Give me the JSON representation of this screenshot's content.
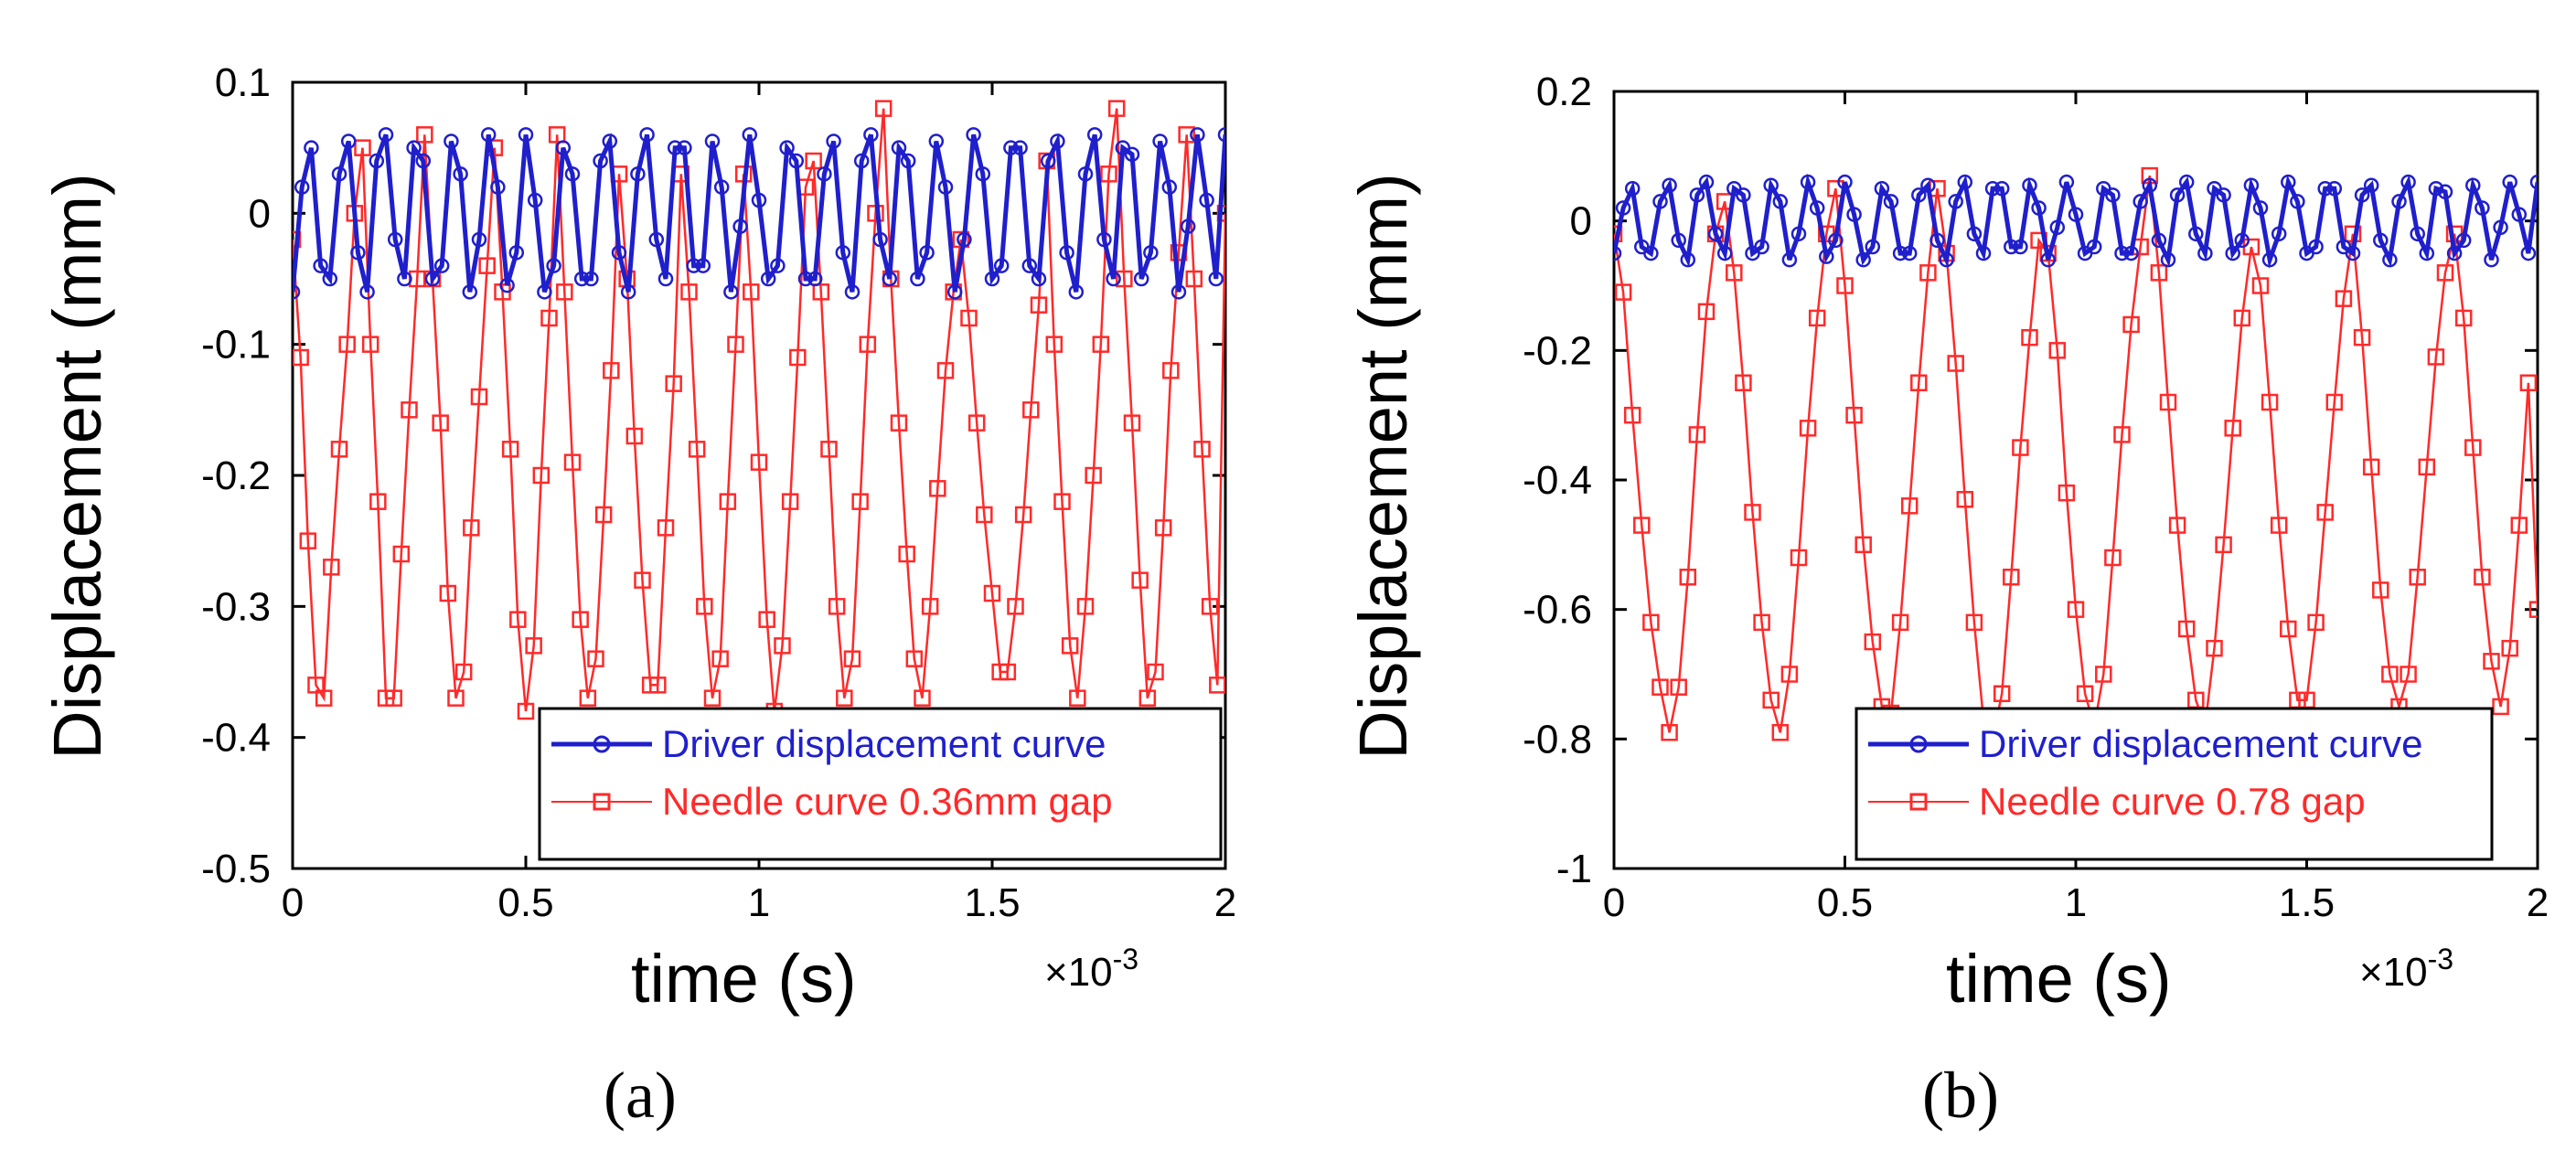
{
  "colors": {
    "driver": "#1f1fcc",
    "needle": "#ff2a2a",
    "axis": "#000000",
    "background": "#ffffff"
  },
  "chart_data": [
    {
      "type": "line",
      "panel_label": "(a)",
      "xlabel": "time (s)",
      "ylabel": "Displacement (mm)",
      "x_exponent": "×10",
      "x_exponent_power": "-3",
      "xlim": [
        0,
        2
      ],
      "ylim": [
        -0.5,
        0.1
      ],
      "xticks": [
        0,
        0.5,
        1,
        1.5,
        2
      ],
      "xtick_labels": [
        "0",
        "0.5",
        "1",
        "1.5",
        "2"
      ],
      "yticks": [
        0.1,
        0,
        -0.1,
        -0.2,
        -0.3,
        -0.4,
        -0.5
      ],
      "ytick_labels": [
        "0.1",
        "0",
        "-0.1",
        "-0.2",
        "-0.3",
        "-0.4",
        "-0.5"
      ],
      "legend_position": "bottom-right",
      "series": [
        {
          "name": "Driver displacement curve",
          "marker": "circle",
          "x": [
            0,
            0.02,
            0.04,
            0.06,
            0.08,
            0.1,
            0.12,
            0.14,
            0.16,
            0.18,
            0.2,
            0.22,
            0.24,
            0.26,
            0.28,
            0.3,
            0.32,
            0.34,
            0.36,
            0.38,
            0.4,
            0.42,
            0.44,
            0.46,
            0.48,
            0.5,
            0.52,
            0.54,
            0.56,
            0.58,
            0.6,
            0.62,
            0.64,
            0.66,
            0.68,
            0.7,
            0.72,
            0.74,
            0.76,
            0.78,
            0.8,
            0.82,
            0.84,
            0.86,
            0.88,
            0.9,
            0.92,
            0.94,
            0.96,
            0.98,
            1,
            1.02,
            1.04,
            1.06,
            1.08,
            1.1,
            1.12,
            1.14,
            1.16,
            1.18,
            1.2,
            1.22,
            1.24,
            1.26,
            1.28,
            1.3,
            1.32,
            1.34,
            1.36,
            1.38,
            1.4,
            1.42,
            1.44,
            1.46,
            1.48,
            1.5,
            1.52,
            1.54,
            1.56,
            1.58,
            1.6,
            1.62,
            1.64,
            1.66,
            1.68,
            1.7,
            1.72,
            1.74,
            1.76,
            1.78,
            1.8,
            1.82,
            1.84,
            1.86,
            1.88,
            1.9,
            1.92,
            1.94,
            1.96,
            1.98,
            2
          ],
          "y": [
            -0.06,
            0.02,
            0.05,
            -0.04,
            -0.05,
            0.03,
            0.055,
            -0.03,
            -0.06,
            0.04,
            0.06,
            -0.02,
            -0.05,
            0.05,
            0.04,
            -0.05,
            -0.04,
            0.055,
            0.03,
            -0.06,
            -0.02,
            0.06,
            0.02,
            -0.055,
            -0.03,
            0.06,
            0.01,
            -0.06,
            -0.04,
            0.05,
            0.03,
            -0.05,
            -0.05,
            0.04,
            0.055,
            -0.03,
            -0.06,
            0.03,
            0.06,
            -0.02,
            -0.05,
            0.05,
            0.05,
            -0.04,
            -0.04,
            0.055,
            0.02,
            -0.06,
            -0.01,
            0.06,
            0.01,
            -0.05,
            -0.04,
            0.05,
            0.04,
            -0.05,
            -0.05,
            0.03,
            0.055,
            -0.03,
            -0.06,
            0.04,
            0.06,
            -0.02,
            -0.05,
            0.05,
            0.04,
            -0.05,
            -0.03,
            0.055,
            0.02,
            -0.06,
            -0.02,
            0.06,
            0.03,
            -0.05,
            -0.04,
            0.05,
            0.05,
            -0.04,
            -0.05,
            0.04,
            0.055,
            -0.03,
            -0.06,
            0.03,
            0.06,
            -0.02,
            -0.05,
            0.05,
            0.045,
            -0.05,
            -0.03,
            0.055,
            0.02,
            -0.06,
            -0.01,
            0.06,
            0.01,
            -0.05,
            0.06
          ]
        },
        {
          "name": "Needle curve 0.36mm gap",
          "marker": "square",
          "x": [
            0,
            0.017,
            0.033,
            0.05,
            0.067,
            0.083,
            0.1,
            0.117,
            0.133,
            0.15,
            0.167,
            0.183,
            0.2,
            0.217,
            0.233,
            0.25,
            0.267,
            0.283,
            0.3,
            0.317,
            0.333,
            0.35,
            0.367,
            0.383,
            0.4,
            0.417,
            0.433,
            0.45,
            0.467,
            0.483,
            0.5,
            0.517,
            0.533,
            0.55,
            0.567,
            0.583,
            0.6,
            0.617,
            0.633,
            0.65,
            0.667,
            0.683,
            0.7,
            0.717,
            0.733,
            0.75,
            0.767,
            0.783,
            0.8,
            0.817,
            0.833,
            0.85,
            0.867,
            0.883,
            0.9,
            0.917,
            0.933,
            0.95,
            0.967,
            0.983,
            1,
            1.017,
            1.033,
            1.05,
            1.067,
            1.083,
            1.1,
            1.117,
            1.133,
            1.15,
            1.167,
            1.183,
            1.2,
            1.217,
            1.233,
            1.25,
            1.267,
            1.283,
            1.3,
            1.317,
            1.333,
            1.35,
            1.367,
            1.383,
            1.4,
            1.417,
            1.433,
            1.45,
            1.467,
            1.483,
            1.5,
            1.517,
            1.533,
            1.55,
            1.567,
            1.583,
            1.6,
            1.617,
            1.633,
            1.65,
            1.667,
            1.683,
            1.7,
            1.717,
            1.733,
            1.75,
            1.767,
            1.783,
            1.8,
            1.817,
            1.833,
            1.85,
            1.867,
            1.883,
            1.9,
            1.917,
            1.933,
            1.95,
            1.967,
            1.983,
            2
          ],
          "y": [
            -0.02,
            -0.11,
            -0.25,
            -0.36,
            -0.37,
            -0.27,
            -0.18,
            -0.1,
            0.0,
            0.05,
            -0.1,
            -0.22,
            -0.37,
            -0.37,
            -0.26,
            -0.15,
            -0.05,
            0.06,
            -0.05,
            -0.16,
            -0.29,
            -0.37,
            -0.35,
            -0.24,
            -0.14,
            -0.04,
            0.05,
            -0.06,
            -0.18,
            -0.31,
            -0.38,
            -0.33,
            -0.2,
            -0.08,
            0.06,
            -0.06,
            -0.19,
            -0.31,
            -0.37,
            -0.34,
            -0.23,
            -0.12,
            0.03,
            -0.05,
            -0.17,
            -0.28,
            -0.36,
            -0.36,
            -0.24,
            -0.13,
            0.03,
            -0.06,
            -0.18,
            -0.3,
            -0.37,
            -0.34,
            -0.22,
            -0.1,
            0.03,
            -0.06,
            -0.19,
            -0.31,
            -0.38,
            -0.33,
            -0.22,
            -0.11,
            0.02,
            0.04,
            -0.06,
            -0.18,
            -0.3,
            -0.37,
            -0.34,
            -0.22,
            -0.1,
            0.0,
            0.08,
            -0.05,
            -0.16,
            -0.26,
            -0.34,
            -0.37,
            -0.3,
            -0.21,
            -0.12,
            -0.06,
            -0.02,
            -0.08,
            -0.16,
            -0.23,
            -0.29,
            -0.35,
            -0.35,
            -0.3,
            -0.23,
            -0.15,
            -0.07,
            0.04,
            -0.1,
            -0.22,
            -0.33,
            -0.37,
            -0.3,
            -0.2,
            -0.1,
            0.03,
            0.08,
            -0.05,
            -0.16,
            -0.28,
            -0.37,
            -0.35,
            -0.24,
            -0.12,
            -0.03,
            0.06,
            -0.05,
            -0.18,
            -0.3,
            -0.36,
            0.0
          ]
        }
      ]
    },
    {
      "type": "line",
      "panel_label": "(b)",
      "xlabel": "time (s)",
      "ylabel": "Displacement (mm)",
      "x_exponent": "×10",
      "x_exponent_power": "-3",
      "xlim": [
        0,
        2
      ],
      "ylim": [
        -1,
        0.2
      ],
      "xticks": [
        0,
        0.5,
        1,
        1.5,
        2
      ],
      "xtick_labels": [
        "0",
        "0.5",
        "1",
        "1.5",
        "2"
      ],
      "yticks": [
        0.2,
        0,
        -0.2,
        -0.4,
        -0.6,
        -0.8,
        -1
      ],
      "ytick_labels": [
        "0.2",
        "0",
        "-0.2",
        "-0.4",
        "-0.6",
        "-0.8",
        "-1"
      ],
      "legend_position": "bottom-right",
      "series": [
        {
          "name": "Driver displacement curve",
          "marker": "circle",
          "x": [
            0,
            0.02,
            0.04,
            0.06,
            0.08,
            0.1,
            0.12,
            0.14,
            0.16,
            0.18,
            0.2,
            0.22,
            0.24,
            0.26,
            0.28,
            0.3,
            0.32,
            0.34,
            0.36,
            0.38,
            0.4,
            0.42,
            0.44,
            0.46,
            0.48,
            0.5,
            0.52,
            0.54,
            0.56,
            0.58,
            0.6,
            0.62,
            0.64,
            0.66,
            0.68,
            0.7,
            0.72,
            0.74,
            0.76,
            0.78,
            0.8,
            0.82,
            0.84,
            0.86,
            0.88,
            0.9,
            0.92,
            0.94,
            0.96,
            0.98,
            1,
            1.02,
            1.04,
            1.06,
            1.08,
            1.1,
            1.12,
            1.14,
            1.16,
            1.18,
            1.2,
            1.22,
            1.24,
            1.26,
            1.28,
            1.3,
            1.32,
            1.34,
            1.36,
            1.38,
            1.4,
            1.42,
            1.44,
            1.46,
            1.48,
            1.5,
            1.52,
            1.54,
            1.56,
            1.58,
            1.6,
            1.62,
            1.64,
            1.66,
            1.68,
            1.7,
            1.72,
            1.74,
            1.76,
            1.78,
            1.8,
            1.82,
            1.84,
            1.86,
            1.88,
            1.9,
            1.92,
            1.94,
            1.96,
            1.98,
            2
          ],
          "y": [
            -0.05,
            0.02,
            0.05,
            -0.04,
            -0.05,
            0.03,
            0.055,
            -0.03,
            -0.06,
            0.04,
            0.06,
            -0.02,
            -0.05,
            0.05,
            0.04,
            -0.05,
            -0.04,
            0.055,
            0.03,
            -0.06,
            -0.02,
            0.06,
            0.02,
            -0.055,
            -0.03,
            0.06,
            0.01,
            -0.06,
            -0.04,
            0.05,
            0.03,
            -0.05,
            -0.05,
            0.04,
            0.055,
            -0.03,
            -0.06,
            0.03,
            0.06,
            -0.02,
            -0.05,
            0.05,
            0.05,
            -0.04,
            -0.04,
            0.055,
            0.02,
            -0.06,
            -0.01,
            0.06,
            0.01,
            -0.05,
            -0.04,
            0.05,
            0.04,
            -0.05,
            -0.05,
            0.03,
            0.055,
            -0.03,
            -0.06,
            0.04,
            0.06,
            -0.02,
            -0.05,
            0.05,
            0.04,
            -0.05,
            -0.03,
            0.055,
            0.02,
            -0.06,
            -0.02,
            0.06,
            0.03,
            -0.05,
            -0.04,
            0.05,
            0.05,
            -0.04,
            -0.05,
            0.04,
            0.055,
            -0.03,
            -0.06,
            0.03,
            0.06,
            -0.02,
            -0.05,
            0.05,
            0.045,
            -0.05,
            -0.03,
            0.055,
            0.02,
            -0.06,
            -0.01,
            0.06,
            0.01,
            -0.05,
            0.06
          ]
        },
        {
          "name": "Needle curve 0.78 gap",
          "marker": "square",
          "x": [
            0,
            0.02,
            0.04,
            0.06,
            0.08,
            0.1,
            0.12,
            0.14,
            0.16,
            0.18,
            0.2,
            0.22,
            0.24,
            0.26,
            0.28,
            0.3,
            0.32,
            0.34,
            0.36,
            0.38,
            0.4,
            0.42,
            0.44,
            0.46,
            0.48,
            0.5,
            0.52,
            0.54,
            0.56,
            0.58,
            0.6,
            0.62,
            0.64,
            0.66,
            0.68,
            0.7,
            0.72,
            0.74,
            0.76,
            0.78,
            0.8,
            0.82,
            0.84,
            0.86,
            0.88,
            0.9,
            0.92,
            0.94,
            0.96,
            0.98,
            1,
            1.02,
            1.04,
            1.06,
            1.08,
            1.1,
            1.12,
            1.14,
            1.16,
            1.18,
            1.2,
            1.22,
            1.24,
            1.26,
            1.28,
            1.3,
            1.32,
            1.34,
            1.36,
            1.38,
            1.4,
            1.42,
            1.44,
            1.46,
            1.48,
            1.5,
            1.52,
            1.54,
            1.56,
            1.58,
            1.6,
            1.62,
            1.64,
            1.66,
            1.68,
            1.7,
            1.72,
            1.74,
            1.76,
            1.78,
            1.8,
            1.82,
            1.84,
            1.86,
            1.88,
            1.9,
            1.92,
            1.94,
            1.96,
            1.98,
            2
          ],
          "y": [
            -0.02,
            -0.11,
            -0.3,
            -0.47,
            -0.62,
            -0.72,
            -0.79,
            -0.72,
            -0.55,
            -0.33,
            -0.14,
            -0.02,
            0.03,
            -0.08,
            -0.25,
            -0.45,
            -0.62,
            -0.74,
            -0.79,
            -0.7,
            -0.52,
            -0.32,
            -0.15,
            -0.02,
            0.05,
            -0.1,
            -0.3,
            -0.5,
            -0.65,
            -0.75,
            -0.76,
            -0.62,
            -0.44,
            -0.25,
            -0.08,
            0.05,
            -0.05,
            -0.22,
            -0.43,
            -0.62,
            -0.77,
            -0.8,
            -0.73,
            -0.55,
            -0.35,
            -0.18,
            -0.03,
            -0.05,
            -0.2,
            -0.42,
            -0.6,
            -0.73,
            -0.78,
            -0.7,
            -0.52,
            -0.33,
            -0.16,
            -0.04,
            0.07,
            -0.08,
            -0.28,
            -0.47,
            -0.63,
            -0.74,
            -0.78,
            -0.66,
            -0.5,
            -0.32,
            -0.15,
            -0.04,
            -0.1,
            -0.28,
            -0.47,
            -0.63,
            -0.74,
            -0.74,
            -0.62,
            -0.45,
            -0.28,
            -0.12,
            -0.02,
            -0.18,
            -0.38,
            -0.57,
            -0.7,
            -0.75,
            -0.7,
            -0.55,
            -0.38,
            -0.21,
            -0.08,
            -0.02,
            -0.15,
            -0.35,
            -0.55,
            -0.68,
            -0.75,
            -0.66,
            -0.47,
            -0.25,
            -0.6
          ]
        }
      ]
    }
  ]
}
